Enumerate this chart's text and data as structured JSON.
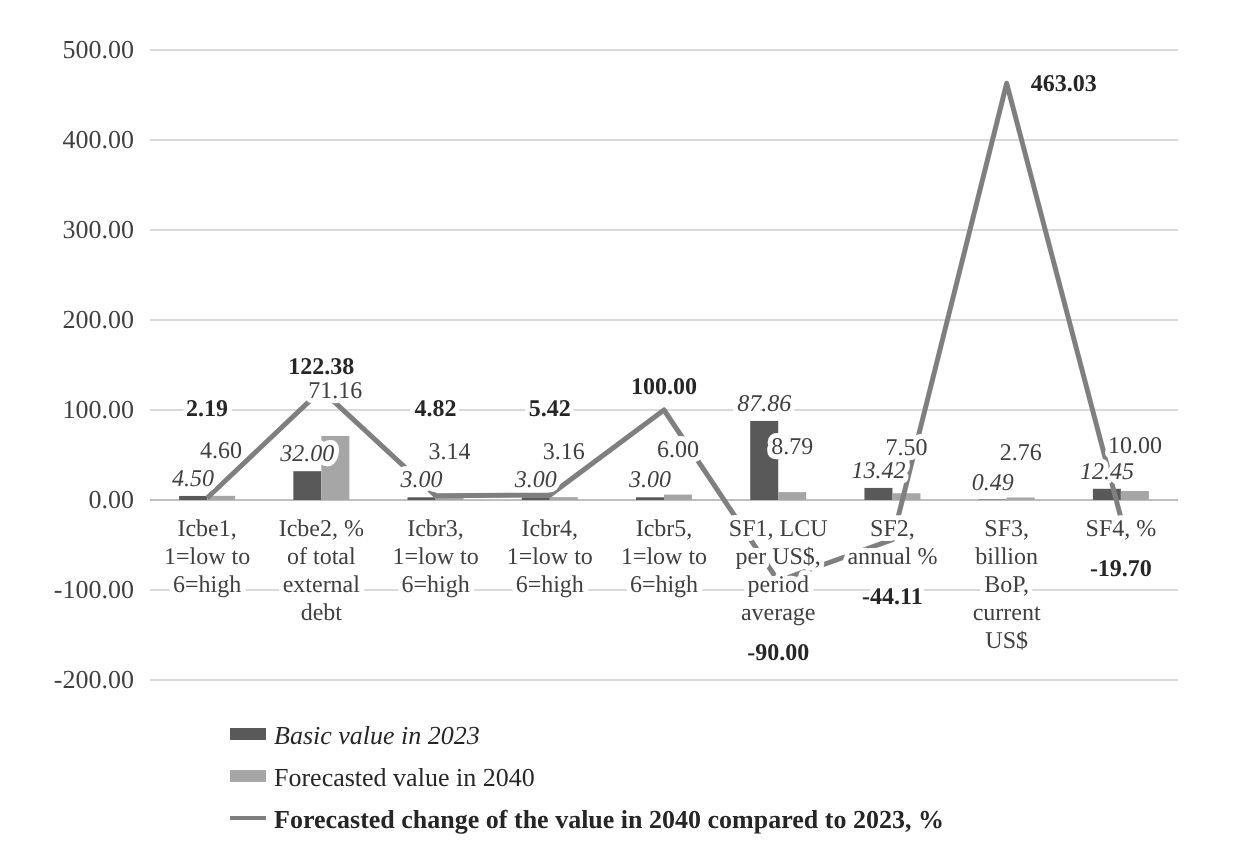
{
  "chart_data": {
    "type": "bar",
    "categories": [
      "Icbe1, 1=low to 6=high",
      "Icbe2, % of total external debt",
      "Icbr3, 1=low to 6=high",
      "Icbr4, 1=low to 6=high",
      "Icbr5, 1=low to 6=high",
      "SF1, LCU per US$, period average",
      "SF2, annual %",
      "SF3, billion BoP, current US$",
      "SF4, %"
    ],
    "series": [
      {
        "name": "Basic value in 2023",
        "color": "#595959",
        "values": [
          4.5,
          32,
          3,
          3,
          3,
          87.86,
          13.42,
          0.49,
          12.45
        ],
        "value_labels": [
          "4.50",
          "32.00",
          "3.00",
          "3.00",
          "3.00",
          "87.86",
          "13.42",
          "0.49",
          "12.45"
        ]
      },
      {
        "name": "Forecasted value in 2040",
        "color": "#a6a6a6",
        "values": [
          4.6,
          71.16,
          3.14,
          3.16,
          6,
          8.79,
          7.5,
          2.76,
          10
        ],
        "value_labels": [
          "4.60",
          "71.16",
          "3.14",
          "3.16",
          "6.00",
          "8.79",
          "7.50",
          "2.76",
          "10.00"
        ]
      },
      {
        "name": "Forecasted change of the value in 2040 compared to 2023, %",
        "type": "line",
        "color": "#7f7f7f",
        "values": [
          2.19,
          122.38,
          4.82,
          5.42,
          100,
          -90,
          -44.11,
          463.03,
          -19.7
        ],
        "value_labels": [
          "2.19",
          "122.38",
          "4.82",
          "5.42",
          "100.00",
          "-90.00",
          "-44.11",
          "463.03",
          "-19.70"
        ]
      }
    ],
    "ylim": [
      -200,
      500
    ],
    "yticks": [
      {
        "value": -200,
        "label": "-200.00"
      },
      {
        "value": -100,
        "label": "-100.00"
      },
      {
        "value": 0,
        "label": "0.00"
      },
      {
        "value": 100,
        "label": "100.00"
      },
      {
        "value": 200,
        "label": "200.00"
      },
      {
        "value": 300,
        "label": "300.00"
      },
      {
        "value": 400,
        "label": "400.00"
      },
      {
        "value": 500,
        "label": "500.00"
      }
    ],
    "grid": "y",
    "legend": "bottom",
    "marker": "none",
    "line_style": "solid"
  }
}
